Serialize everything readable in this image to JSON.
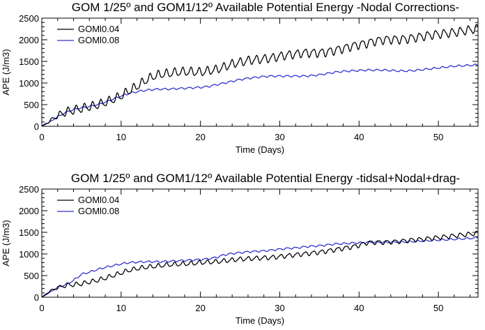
{
  "colors": {
    "GOMl0.04": "#000000",
    "GOMl0.08": "#3030d0"
  },
  "chart_data": [
    {
      "type": "line",
      "title": "GOM 1/25º and GOM1/12º  Available Potential Energy  -Nodal Corrections-",
      "xlabel": "Time (Days)",
      "ylabel": "APE (J/m3)",
      "xlim": [
        0,
        55
      ],
      "ylim": [
        0,
        2500
      ],
      "xticks": [
        0,
        10,
        20,
        30,
        40,
        50
      ],
      "yticks": [
        0,
        500,
        1000,
        1500,
        2000,
        2500
      ],
      "legend": "top-left",
      "grid": false,
      "series": [
        {
          "name": "GOMl0.04",
          "x": [
            0,
            1,
            2,
            3,
            4,
            5,
            6,
            7,
            8,
            9,
            10,
            11,
            12,
            13,
            14,
            15,
            16,
            17,
            18,
            19,
            20,
            21,
            22,
            23,
            24,
            25,
            26,
            27,
            28,
            29,
            30,
            31,
            32,
            33,
            34,
            35,
            36,
            37,
            38,
            39,
            40,
            41,
            42,
            43,
            44,
            45,
            46,
            47,
            48,
            49,
            50,
            51,
            52,
            53,
            54,
            55
          ],
          "values": [
            0,
            120,
            250,
            330,
            370,
            410,
            450,
            490,
            550,
            620,
            700,
            820,
            920,
            1050,
            1150,
            1200,
            1220,
            1250,
            1260,
            1260,
            1250,
            1280,
            1310,
            1370,
            1440,
            1480,
            1520,
            1540,
            1560,
            1580,
            1620,
            1650,
            1670,
            1700,
            1700,
            1700,
            1720,
            1760,
            1800,
            1850,
            1890,
            1920,
            1970,
            2000,
            2010,
            2010,
            2020,
            2050,
            2080,
            2110,
            2130,
            2150,
            2170,
            2200,
            2230,
            2260
          ],
          "osc_amplitude": 90
        },
        {
          "name": "GOMl0.08",
          "x": [
            0,
            1,
            2,
            3,
            4,
            5,
            6,
            7,
            8,
            9,
            10,
            11,
            12,
            13,
            14,
            15,
            16,
            17,
            18,
            19,
            20,
            21,
            22,
            23,
            24,
            25,
            26,
            27,
            28,
            29,
            30,
            31,
            32,
            33,
            34,
            35,
            36,
            37,
            38,
            39,
            40,
            41,
            42,
            43,
            44,
            45,
            46,
            47,
            48,
            49,
            50,
            51,
            52,
            53,
            54,
            55
          ],
          "values": [
            0,
            100,
            220,
            320,
            390,
            430,
            460,
            500,
            560,
            630,
            700,
            760,
            800,
            830,
            850,
            860,
            860,
            870,
            880,
            890,
            900,
            920,
            960,
            1000,
            1040,
            1080,
            1110,
            1130,
            1150,
            1160,
            1160,
            1160,
            1160,
            1160,
            1170,
            1190,
            1220,
            1250,
            1270,
            1280,
            1290,
            1300,
            1300,
            1300,
            1290,
            1280,
            1280,
            1290,
            1310,
            1330,
            1350,
            1370,
            1390,
            1400,
            1410,
            1420
          ],
          "osc_amplitude": 18
        }
      ]
    },
    {
      "type": "line",
      "title": "GOM 1/25º and GOM1/12º  Available Potential Energy -tidsal+Nodal+drag-",
      "xlabel": "Time (Days)",
      "ylabel": "APE (J/m3)",
      "xlim": [
        0,
        55
      ],
      "ylim": [
        0,
        2500
      ],
      "xticks": [
        0,
        10,
        20,
        30,
        40,
        50
      ],
      "yticks": [
        0,
        500,
        1000,
        1500,
        2000,
        2500
      ],
      "legend": "top-left",
      "grid": false,
      "series": [
        {
          "name": "GOMl0.04",
          "x": [
            0,
            1,
            2,
            3,
            4,
            5,
            6,
            7,
            8,
            9,
            10,
            11,
            12,
            13,
            14,
            15,
            16,
            17,
            18,
            19,
            20,
            21,
            22,
            23,
            24,
            25,
            26,
            27,
            28,
            29,
            30,
            31,
            32,
            33,
            34,
            35,
            36,
            37,
            38,
            39,
            40,
            41,
            42,
            43,
            44,
            45,
            46,
            47,
            48,
            49,
            50,
            51,
            52,
            53,
            54,
            55
          ],
          "values": [
            0,
            140,
            220,
            270,
            290,
            310,
            350,
            390,
            440,
            500,
            560,
            620,
            660,
            690,
            710,
            730,
            750,
            760,
            770,
            780,
            800,
            810,
            820,
            840,
            860,
            880,
            890,
            900,
            910,
            920,
            940,
            960,
            980,
            1000,
            1020,
            1040,
            1070,
            1100,
            1130,
            1160,
            1200,
            1260,
            1270,
            1270,
            1280,
            1290,
            1310,
            1330,
            1340,
            1360,
            1380,
            1400,
            1420,
            1440,
            1460,
            1480
          ],
          "osc_amplitude": 45
        },
        {
          "name": "GOMl0.08",
          "x": [
            0,
            1,
            2,
            3,
            4,
            5,
            6,
            7,
            8,
            9,
            10,
            11,
            12,
            13,
            14,
            15,
            16,
            17,
            18,
            19,
            20,
            21,
            22,
            23,
            24,
            25,
            26,
            27,
            28,
            29,
            30,
            31,
            32,
            33,
            34,
            35,
            36,
            37,
            38,
            39,
            40,
            41,
            42,
            43,
            44,
            45,
            46,
            47,
            48,
            49,
            50,
            51,
            52,
            53,
            54,
            55
          ],
          "values": [
            0,
            110,
            230,
            290,
            390,
            530,
            580,
            640,
            690,
            730,
            770,
            800,
            810,
            820,
            820,
            820,
            830,
            840,
            850,
            860,
            870,
            890,
            920,
            980,
            1010,
            1030,
            1050,
            1060,
            1070,
            1090,
            1110,
            1130,
            1140,
            1160,
            1180,
            1190,
            1210,
            1230,
            1240,
            1250,
            1260,
            1270,
            1270,
            1270,
            1270,
            1280,
            1280,
            1290,
            1300,
            1310,
            1320,
            1330,
            1340,
            1350,
            1360,
            1380
          ],
          "osc_amplitude": 18
        }
      ]
    }
  ]
}
